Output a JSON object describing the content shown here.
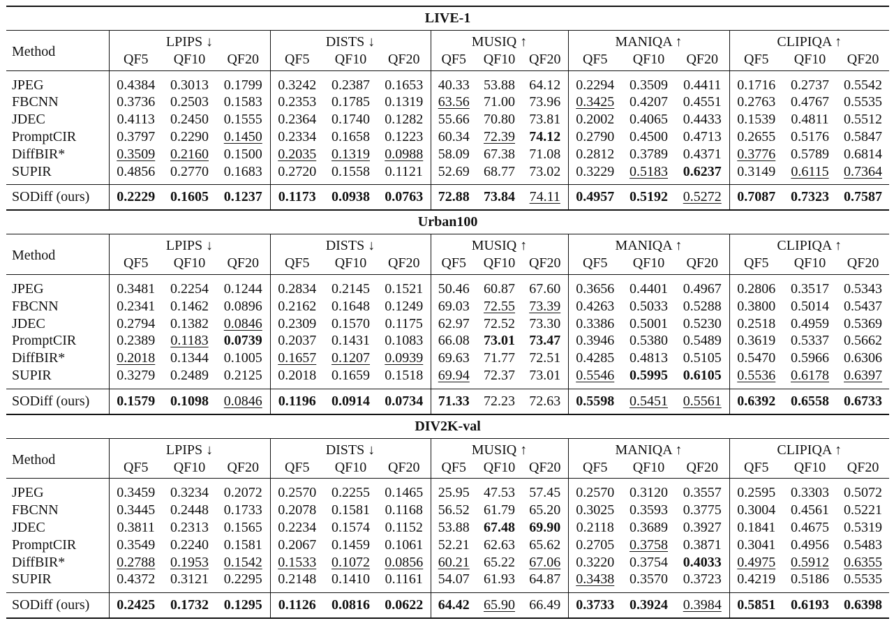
{
  "method_header": "Method",
  "metric_groups": [
    "LPIPS ↓",
    "DISTS ↓",
    "MUSIQ ↑",
    "MANIQA ↑",
    "CLIPIQA ↑"
  ],
  "qf_labels": [
    "QF5",
    "QF10",
    "QF20"
  ],
  "datasets": [
    {
      "title": "LIVE-1",
      "rows": [
        {
          "method": "JPEG",
          "values": [
            "0.4384",
            "0.3013",
            "0.1799",
            "0.3242",
            "0.2387",
            "0.1653",
            "40.33",
            "53.88",
            "64.12",
            "0.2294",
            "0.3509",
            "0.4411",
            "0.1716",
            "0.2737",
            "0.5542"
          ],
          "styles": [
            "",
            "",
            "",
            "",
            "",
            "",
            "",
            "",
            "",
            "",
            "",
            "",
            "",
            "",
            ""
          ]
        },
        {
          "method": "FBCNN",
          "values": [
            "0.3736",
            "0.2503",
            "0.1583",
            "0.2353",
            "0.1785",
            "0.1319",
            "63.56",
            "71.00",
            "73.96",
            "0.3425",
            "0.4207",
            "0.4551",
            "0.2763",
            "0.4767",
            "0.5535"
          ],
          "styles": [
            "",
            "",
            "",
            "",
            "",
            "",
            "u",
            "",
            "",
            "u",
            "",
            "",
            "",
            "",
            ""
          ]
        },
        {
          "method": "JDEC",
          "values": [
            "0.4113",
            "0.2450",
            "0.1555",
            "0.2364",
            "0.1740",
            "0.1282",
            "55.66",
            "70.80",
            "73.81",
            "0.2002",
            "0.4065",
            "0.4433",
            "0.1539",
            "0.4811",
            "0.5512"
          ],
          "styles": [
            "",
            "",
            "",
            "",
            "",
            "",
            "",
            "",
            "",
            "",
            "",
            "",
            "",
            "",
            ""
          ]
        },
        {
          "method": "PromptCIR",
          "values": [
            "0.3797",
            "0.2290",
            "0.1450",
            "0.2334",
            "0.1658",
            "0.1223",
            "60.34",
            "72.39",
            "74.12",
            "0.2790",
            "0.4500",
            "0.4713",
            "0.2655",
            "0.5176",
            "0.5847"
          ],
          "styles": [
            "",
            "",
            "u",
            "",
            "",
            "",
            "",
            "u",
            "b",
            "",
            "",
            "",
            "",
            "",
            ""
          ]
        },
        {
          "method": "DiffBIR*",
          "values": [
            "0.3509",
            "0.2160",
            "0.1500",
            "0.2035",
            "0.1319",
            "0.0988",
            "58.09",
            "67.38",
            "71.08",
            "0.2812",
            "0.3789",
            "0.4371",
            "0.3776",
            "0.5789",
            "0.6814"
          ],
          "styles": [
            "u",
            "u",
            "",
            "u",
            "u",
            "u",
            "",
            "",
            "",
            "",
            "",
            "",
            "u",
            "",
            ""
          ]
        },
        {
          "method": "SUPIR",
          "values": [
            "0.4856",
            "0.2770",
            "0.1683",
            "0.2720",
            "0.1558",
            "0.1121",
            "52.69",
            "68.77",
            "73.02",
            "0.3229",
            "0.5183",
            "0.6237",
            "0.3149",
            "0.6115",
            "0.7364"
          ],
          "styles": [
            "",
            "",
            "",
            "",
            "",
            "",
            "",
            "",
            "",
            "",
            "u",
            "b",
            "",
            "u",
            "u"
          ]
        }
      ],
      "ours": {
        "method": "SODiff (ours)",
        "values": [
          "0.2229",
          "0.1605",
          "0.1237",
          "0.1173",
          "0.0938",
          "0.0763",
          "72.88",
          "73.84",
          "74.11",
          "0.4957",
          "0.5192",
          "0.5272",
          "0.7087",
          "0.7323",
          "0.7587"
        ],
        "styles": [
          "b",
          "b",
          "b",
          "b",
          "b",
          "b",
          "b",
          "b",
          "u",
          "b",
          "b",
          "u",
          "b",
          "b",
          "b"
        ]
      }
    },
    {
      "title": "Urban100",
      "rows": [
        {
          "method": "JPEG",
          "values": [
            "0.3481",
            "0.2254",
            "0.1244",
            "0.2834",
            "0.2145",
            "0.1521",
            "50.46",
            "60.87",
            "67.60",
            "0.3656",
            "0.4401",
            "0.4967",
            "0.2806",
            "0.3517",
            "0.5343"
          ],
          "styles": [
            "",
            "",
            "",
            "",
            "",
            "",
            "",
            "",
            "",
            "",
            "",
            "",
            "",
            "",
            ""
          ]
        },
        {
          "method": "FBCNN",
          "values": [
            "0.2341",
            "0.1462",
            "0.0896",
            "0.2162",
            "0.1648",
            "0.1249",
            "69.03",
            "72.55",
            "73.39",
            "0.4263",
            "0.5033",
            "0.5288",
            "0.3800",
            "0.5014",
            "0.5437"
          ],
          "styles": [
            "",
            "",
            "",
            "",
            "",
            "",
            "",
            "u",
            "u",
            "",
            "",
            "",
            "",
            "",
            ""
          ]
        },
        {
          "method": "JDEC",
          "values": [
            "0.2794",
            "0.1382",
            "0.0846",
            "0.2309",
            "0.1570",
            "0.1175",
            "62.97",
            "72.52",
            "73.30",
            "0.3386",
            "0.5001",
            "0.5230",
            "0.2518",
            "0.4959",
            "0.5369"
          ],
          "styles": [
            "",
            "",
            "u",
            "",
            "",
            "",
            "",
            "",
            "",
            "",
            "",
            "",
            "",
            "",
            ""
          ]
        },
        {
          "method": "PromptCIR",
          "values": [
            "0.2389",
            "0.1183",
            "0.0739",
            "0.2037",
            "0.1431",
            "0.1083",
            "66.08",
            "73.01",
            "73.47",
            "0.3946",
            "0.5380",
            "0.5489",
            "0.3619",
            "0.5337",
            "0.5662"
          ],
          "styles": [
            "",
            "u",
            "b",
            "",
            "",
            "",
            "",
            "b",
            "b",
            "",
            "",
            "",
            "",
            "",
            ""
          ]
        },
        {
          "method": "DiffBIR*",
          "values": [
            "0.2018",
            "0.1344",
            "0.1005",
            "0.1657",
            "0.1207",
            "0.0939",
            "69.63",
            "71.77",
            "72.51",
            "0.4285",
            "0.4813",
            "0.5105",
            "0.5470",
            "0.5966",
            "0.6306"
          ],
          "styles": [
            "u",
            "",
            "",
            "u",
            "u",
            "u",
            "",
            "",
            "",
            "",
            "",
            "",
            "",
            "",
            ""
          ]
        },
        {
          "method": "SUPIR",
          "values": [
            "0.3279",
            "0.2489",
            "0.2125",
            "0.2018",
            "0.1659",
            "0.1518",
            "69.94",
            "72.37",
            "73.01",
            "0.5546",
            "0.5995",
            "0.6105",
            "0.5536",
            "0.6178",
            "0.6397"
          ],
          "styles": [
            "",
            "",
            "",
            "",
            "",
            "",
            "u",
            "",
            "",
            "u",
            "b",
            "b",
            "u",
            "u",
            "u"
          ]
        }
      ],
      "ours": {
        "method": "SODiff (ours)",
        "values": [
          "0.1579",
          "0.1098",
          "0.0846",
          "0.1196",
          "0.0914",
          "0.0734",
          "71.33",
          "72.23",
          "72.63",
          "0.5598",
          "0.5451",
          "0.5561",
          "0.6392",
          "0.6558",
          "0.6733"
        ],
        "styles": [
          "b",
          "b",
          "u",
          "b",
          "b",
          "b",
          "b",
          "",
          "",
          "b",
          "u",
          "u",
          "b",
          "b",
          "b"
        ]
      }
    },
    {
      "title": "DIV2K-val",
      "rows": [
        {
          "method": "JPEG",
          "values": [
            "0.3459",
            "0.3234",
            "0.2072",
            "0.2570",
            "0.2255",
            "0.1465",
            "25.95",
            "47.53",
            "57.45",
            "0.2570",
            "0.3120",
            "0.3557",
            "0.2595",
            "0.3303",
            "0.5072"
          ],
          "styles": [
            "",
            "",
            "",
            "",
            "",
            "",
            "",
            "",
            "",
            "",
            "",
            "",
            "",
            "",
            ""
          ]
        },
        {
          "method": "FBCNN",
          "values": [
            "0.3445",
            "0.2448",
            "0.1733",
            "0.2078",
            "0.1581",
            "0.1168",
            "56.52",
            "61.79",
            "65.20",
            "0.3025",
            "0.3593",
            "0.3775",
            "0.3004",
            "0.4561",
            "0.5221"
          ],
          "styles": [
            "",
            "",
            "",
            "",
            "",
            "",
            "",
            "",
            "",
            "",
            "",
            "",
            "",
            "",
            ""
          ]
        },
        {
          "method": "JDEC",
          "values": [
            "0.3811",
            "0.2313",
            "0.1565",
            "0.2234",
            "0.1574",
            "0.1152",
            "53.88",
            "67.48",
            "69.90",
            "0.2118",
            "0.3689",
            "0.3927",
            "0.1841",
            "0.4675",
            "0.5319"
          ],
          "styles": [
            "",
            "",
            "",
            "",
            "",
            "",
            "",
            "b",
            "b",
            "",
            "",
            "",
            "",
            "",
            ""
          ]
        },
        {
          "method": "PromptCIR",
          "values": [
            "0.3549",
            "0.2240",
            "0.1581",
            "0.2067",
            "0.1459",
            "0.1061",
            "52.21",
            "62.63",
            "65.62",
            "0.2705",
            "0.3758",
            "0.3871",
            "0.3041",
            "0.4956",
            "0.5483"
          ],
          "styles": [
            "",
            "",
            "",
            "",
            "",
            "",
            "",
            "",
            "",
            "",
            "u",
            "",
            "",
            "",
            ""
          ]
        },
        {
          "method": "DiffBIR*",
          "values": [
            "0.2788",
            "0.1953",
            "0.1542",
            "0.1533",
            "0.1072",
            "0.0856",
            "60.21",
            "65.22",
            "67.06",
            "0.3220",
            "0.3754",
            "0.4033",
            "0.4975",
            "0.5912",
            "0.6355"
          ],
          "styles": [
            "u",
            "u",
            "u",
            "u",
            "u",
            "u",
            "u",
            "",
            "u",
            "",
            "",
            "b",
            "u",
            "u",
            "u"
          ]
        },
        {
          "method": "SUPIR",
          "values": [
            "0.4372",
            "0.3121",
            "0.2295",
            "0.2148",
            "0.1410",
            "0.1161",
            "54.07",
            "61.93",
            "64.87",
            "0.3438",
            "0.3570",
            "0.3723",
            "0.4219",
            "0.5186",
            "0.5535"
          ],
          "styles": [
            "",
            "",
            "",
            "",
            "",
            "",
            "",
            "",
            "",
            "u",
            "",
            "",
            "",
            "",
            ""
          ]
        }
      ],
      "ours": {
        "method": "SODiff (ours)",
        "values": [
          "0.2425",
          "0.1732",
          "0.1295",
          "0.1126",
          "0.0816",
          "0.0622",
          "64.42",
          "65.90",
          "66.49",
          "0.3733",
          "0.3924",
          "0.3984",
          "0.5851",
          "0.6193",
          "0.6398"
        ],
        "styles": [
          "b",
          "b",
          "b",
          "b",
          "b",
          "b",
          "b",
          "u",
          "",
          "b",
          "b",
          "u",
          "b",
          "b",
          "b"
        ]
      }
    }
  ]
}
